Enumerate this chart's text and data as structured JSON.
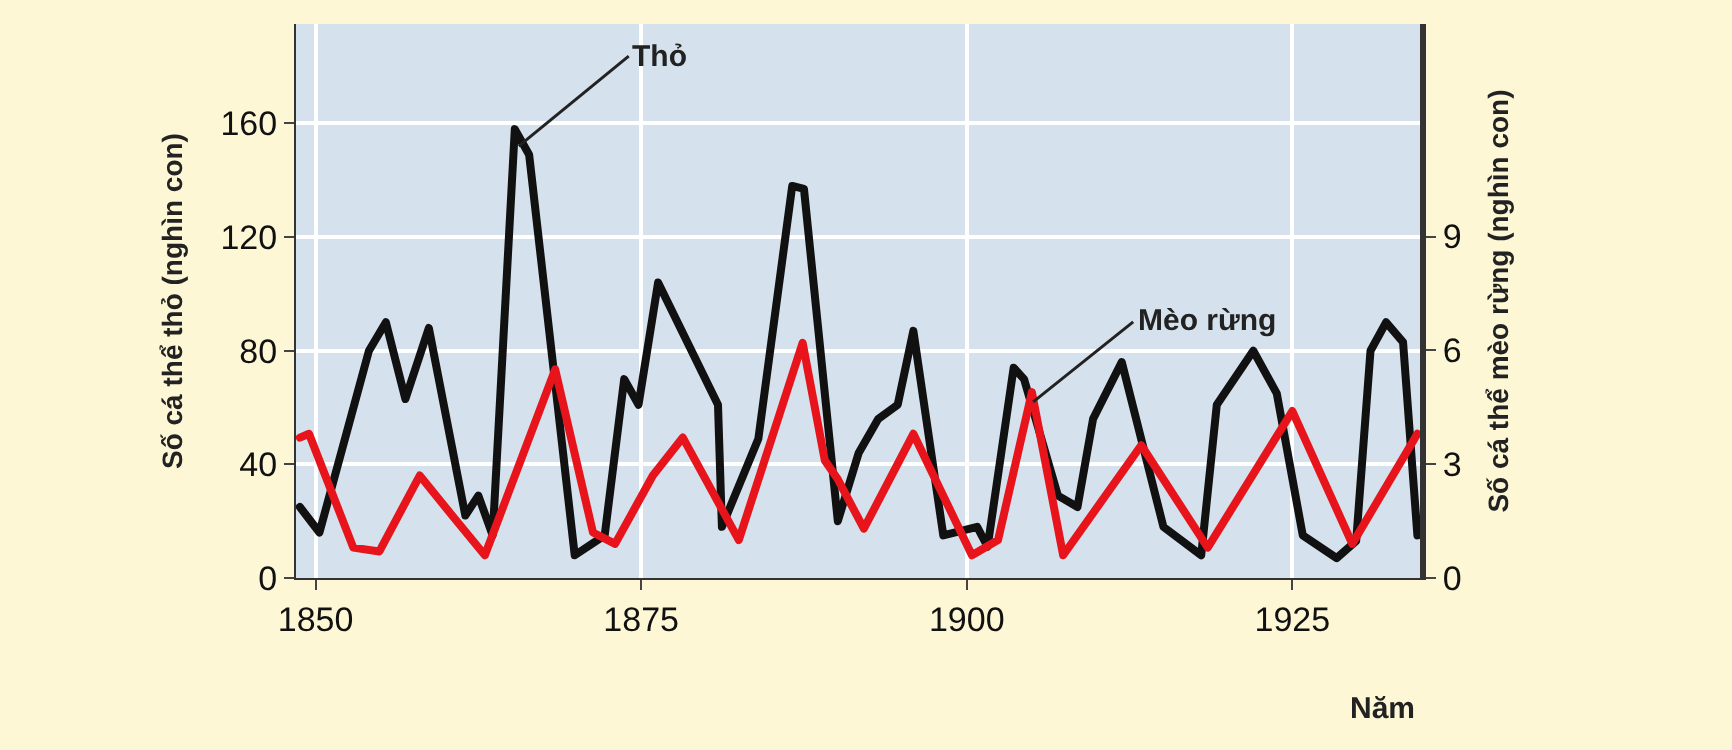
{
  "chart_data": {
    "type": "line",
    "xlabel": "Năm",
    "ylabel": "Số cá thể thỏ (nghìn con)",
    "y2label": "Số cá thể mèo rừng (nghìn con)",
    "xlim": [
      1848.5,
      1934.8
    ],
    "xticks": [
      1850,
      1875,
      1900,
      1925
    ],
    "ylim": [
      0,
      195
    ],
    "yticks": [
      0,
      40,
      80,
      120,
      160
    ],
    "y2lim": [
      0,
      14.6
    ],
    "y2ticks": [
      0,
      3,
      6,
      9
    ],
    "grid": true,
    "marker": "none",
    "line_style": "solid",
    "series": [
      {
        "color": "#111111",
        "x": [
          1848.8,
          1850.3,
          1854.1,
          1855.4,
          1856.9,
          1858.7,
          1861.5,
          1862.5,
          1863.6,
          1865.3,
          1866.4,
          1869.9,
          1872.2,
          1873.7,
          1874.8,
          1876.3,
          1880.9,
          1881.2,
          1884,
          1886.6,
          1887.5,
          1890.1,
          1891.7,
          1893.2,
          1894.7,
          1895.9,
          1898.2,
          1900.8,
          1901.6,
          1903.6,
          1904.4,
          1907,
          1908.5,
          1909.7,
          1911.9,
          1915.1,
          1918,
          1919.2,
          1922,
          1923.8,
          1925.8,
          1928.4,
          1929.9,
          1931,
          1932.2,
          1933.5,
          1934.6
        ],
        "values": [
          25,
          16,
          80,
          90,
          63,
          88,
          22,
          29,
          15,
          158,
          149,
          8,
          15,
          70,
          61,
          104,
          61,
          18,
          49,
          138,
          137,
          20,
          44,
          56,
          61,
          87,
          15,
          18,
          11,
          74,
          70,
          29,
          25,
          56,
          76,
          18,
          8,
          61,
          80,
          65,
          15,
          7,
          13,
          80,
          90,
          83,
          15
        ]
      },
      {
        "color": "#e8141b",
        "axis": "y2",
        "x": [
          1848.8,
          1849.5,
          1852.9,
          1854.9,
          1858,
          1860.6,
          1863,
          1868.4,
          1871.3,
          1873,
          1875.9,
          1878.2,
          1882.5,
          1887.4,
          1889.1,
          1890.1,
          1892.1,
          1895.9,
          1900.4,
          1902.4,
          1905,
          1907.4,
          1913.4,
          1918.5,
          1925,
          1929.6,
          1934.6
        ],
        "values": [
          3.7,
          3.8,
          0.8,
          0.7,
          2.7,
          1.6,
          0.6,
          5.5,
          1.2,
          0.9,
          2.7,
          3.7,
          1.0,
          6.2,
          3.1,
          2.6,
          1.3,
          3.8,
          0.6,
          1.0,
          4.9,
          0.6,
          3.5,
          0.8,
          4.4,
          0.9,
          3.8
        ]
      }
    ],
    "annotations": [
      {
        "text": "Thỏ",
        "x": 1865.6,
        "y": 152
      },
      {
        "text": "Mèo rừng",
        "x": 1905.1,
        "y": 62
      }
    ]
  }
}
